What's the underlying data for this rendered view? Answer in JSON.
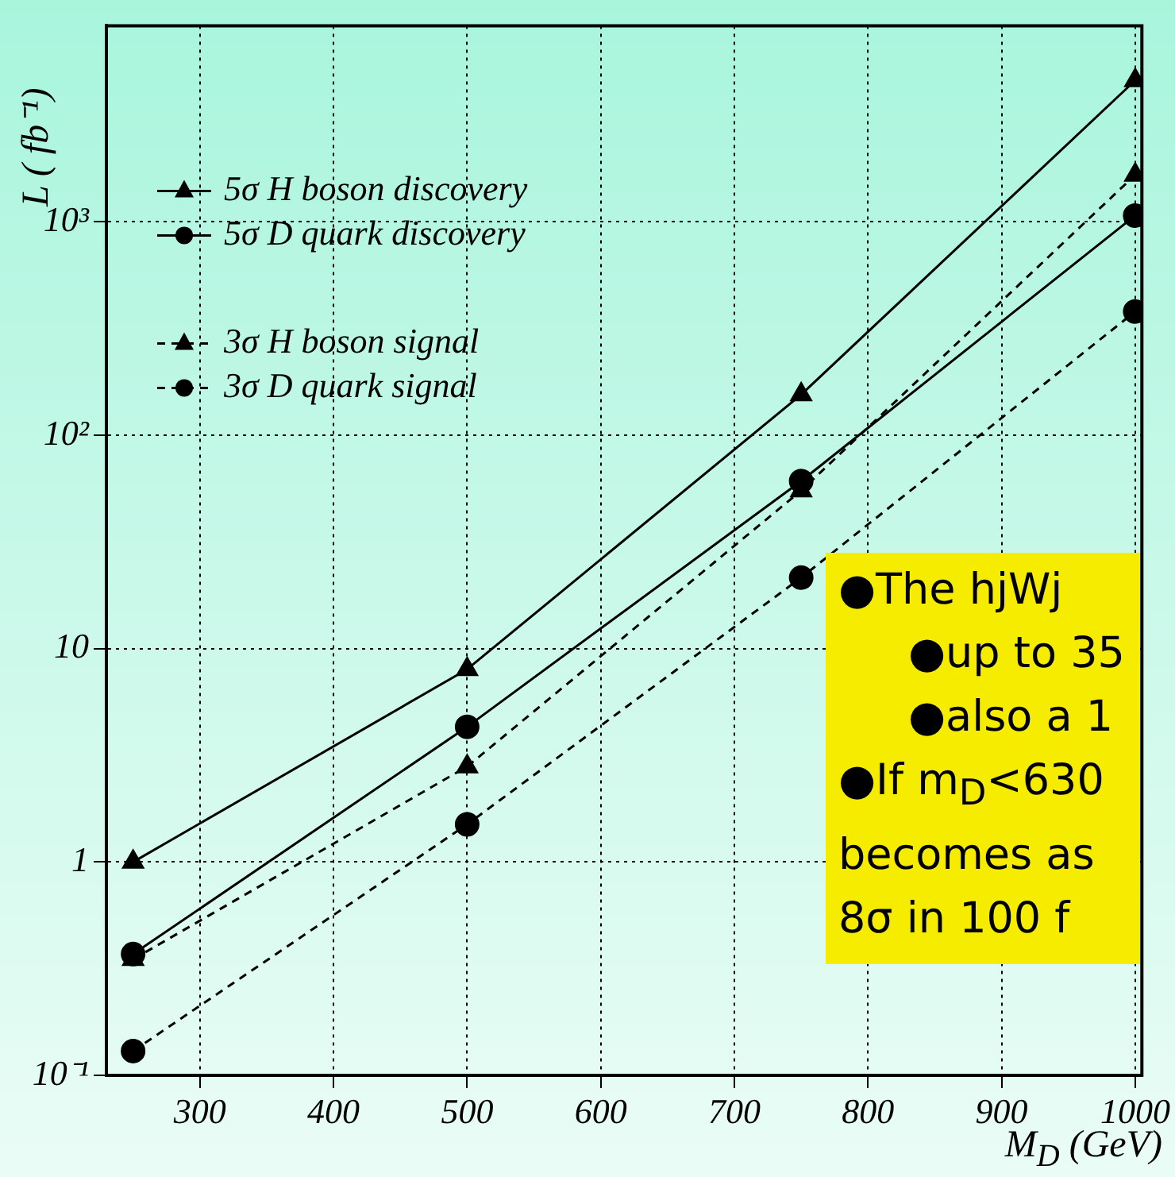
{
  "chart_data": {
    "type": "line",
    "xlabel": "M$_{D}$ (GeV)",
    "ylabel": "L ( fb⁻¹)",
    "log": "y",
    "grid": true,
    "legend": "top left",
    "xlim": [
      230,
      1005
    ],
    "xticks": [
      300,
      400,
      500,
      600,
      700,
      800,
      900,
      1000
    ],
    "ylim": [
      0.1,
      8300
    ],
    "yticks": [
      {
        "value": 0.1,
        "label": "10⁻¹"
      },
      1,
      10,
      {
        "value": 100,
        "label": "10²"
      },
      {
        "value": 1000,
        "label": "10³"
      }
    ],
    "x": [
      250,
      500,
      750,
      1000
    ],
    "series": [
      {
        "name": "5σ H boson discovery",
        "color": "#000000",
        "marker": "triangle",
        "line_style": "solid",
        "values": [
          1.0,
          8.0,
          155,
          4600
        ]
      },
      {
        "name": "5σ D quark discovery",
        "color": "#000000",
        "marker": "circle",
        "line_style": "solid",
        "values": [
          0.37,
          4.3,
          61,
          1070
        ]
      },
      {
        "name": "3σ H boson signal",
        "color": "#000000",
        "marker": "triangle",
        "line_style": "dashed",
        "values": [
          0.35,
          2.8,
          55,
          1660
        ]
      },
      {
        "name": "3σ D quark signal",
        "color": "#000000",
        "marker": "circle",
        "line_style": "dashed",
        "values": [
          0.13,
          1.5,
          21.5,
          380
        ]
      }
    ],
    "annotations": [
      "●The hjWj",
      "●up to 35",
      "●also a 1",
      "●If m$_{D}$<630",
      "becomes as",
      "8σ in 100 f"
    ]
  }
}
